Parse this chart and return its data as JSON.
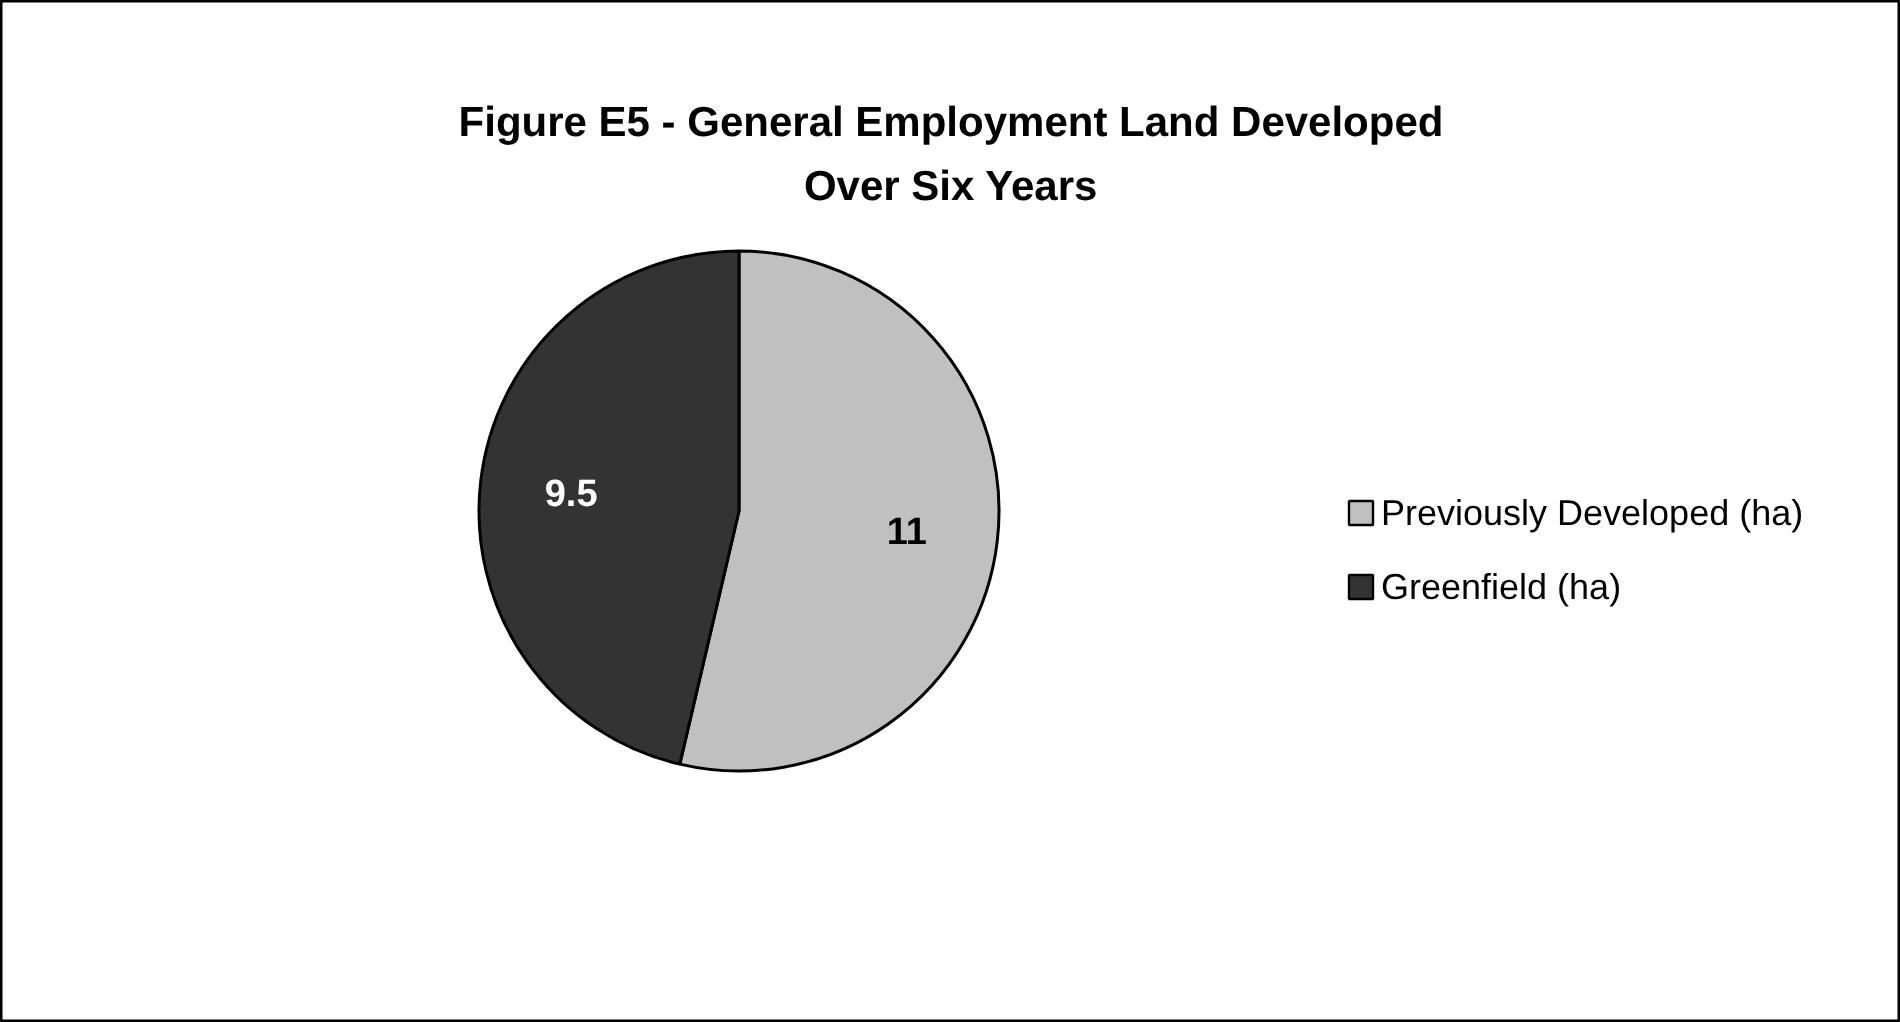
{
  "chart_data": {
    "type": "pie",
    "title": "Figure E5 - General Employment Land Developed Over Six Years",
    "categories": [
      "Previously Developed (ha)",
      "Greenfield (ha)"
    ],
    "values": [
      11,
      9.5
    ],
    "colors": [
      "#c0c0c0",
      "#333333"
    ],
    "data_labels": true,
    "legend": "right"
  }
}
